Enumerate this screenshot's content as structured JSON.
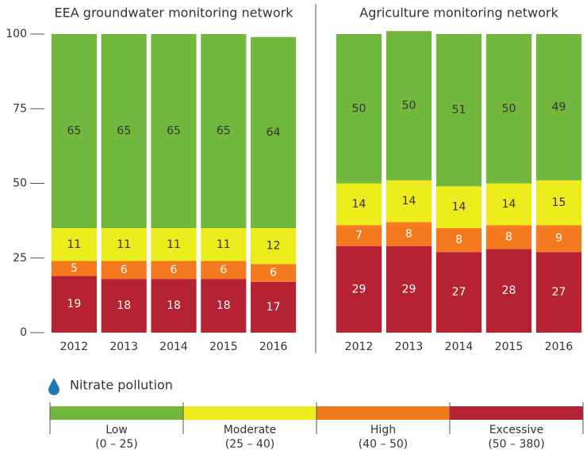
{
  "chart_data": [
    {
      "type": "bar",
      "title": "EEA groundwater monitoring network",
      "categories": [
        "2012",
        "2013",
        "2014",
        "2015",
        "2016"
      ],
      "series": [
        {
          "name": "Excessive",
          "color": "#b52234",
          "values": [
            19,
            18,
            18,
            18,
            17
          ]
        },
        {
          "name": "High",
          "color": "#f47a20",
          "values": [
            5,
            6,
            6,
            6,
            6
          ]
        },
        {
          "name": "Moderate",
          "color": "#eded1e",
          "values": [
            11,
            11,
            11,
            11,
            12
          ]
        },
        {
          "name": "Low",
          "color": "#72b83e",
          "values": [
            65,
            65,
            65,
            65,
            64
          ]
        }
      ],
      "ylim": [
        0,
        100
      ],
      "yticks": [
        0,
        25,
        50,
        75,
        100
      ]
    },
    {
      "type": "bar",
      "title": "Agriculture monitoring network",
      "categories": [
        "2012",
        "2013",
        "2014",
        "2015",
        "2016"
      ],
      "series": [
        {
          "name": "Excessive",
          "color": "#b52234",
          "values": [
            29,
            29,
            27,
            28,
            27
          ]
        },
        {
          "name": "High",
          "color": "#f47a20",
          "values": [
            7,
            8,
            8,
            8,
            9
          ]
        },
        {
          "name": "Moderate",
          "color": "#eded1e",
          "values": [
            14,
            14,
            14,
            14,
            15
          ]
        },
        {
          "name": "Low",
          "color": "#72b83e",
          "values": [
            50,
            50,
            51,
            50,
            49
          ]
        }
      ],
      "ylim": [
        0,
        100
      ]
    }
  ],
  "legend": {
    "title": "Nitrate pollution",
    "ranges": [
      "(0 – 25)",
      "(25 – 40)",
      "(40 – 50)",
      "(50 – 380)"
    ]
  }
}
